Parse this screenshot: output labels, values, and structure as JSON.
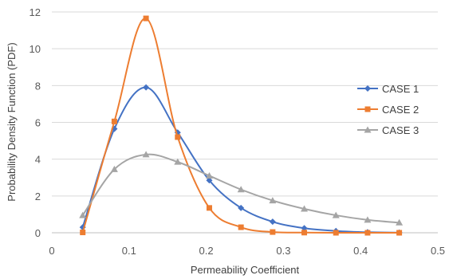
{
  "chart_data": {
    "type": "scatter",
    "title": "",
    "xlabel": "Permeability Coefficient",
    "ylabel": "Probability  Density Function (PDF)",
    "xlim": [
      0,
      0.5
    ],
    "ylim": [
      0,
      12
    ],
    "xticks": [
      "0",
      "0.1",
      "0.2",
      "0.3",
      "0.4",
      "0.5"
    ],
    "yticks": [
      "0",
      "2",
      "4",
      "6",
      "8",
      "10",
      "12"
    ],
    "grid": "horizontal",
    "legend_position": "right",
    "x": [
      0.04,
      0.081,
      0.122,
      0.163,
      0.204,
      0.245,
      0.286,
      0.327,
      0.368,
      0.409,
      0.45
    ],
    "series": [
      {
        "name": "CASE 1",
        "color": "#4472C4",
        "marker": "diamond",
        "values": [
          0.3,
          5.65,
          7.9,
          5.45,
          2.85,
          1.35,
          0.6,
          0.25,
          0.1,
          0.03,
          0.01
        ]
      },
      {
        "name": "CASE 2",
        "color": "#ED7D31",
        "marker": "square",
        "values": [
          0.02,
          6.05,
          11.65,
          5.2,
          1.35,
          0.3,
          0.04,
          0.01,
          0.0,
          0.0,
          0.0
        ]
      },
      {
        "name": "CASE 3",
        "color": "#A5A5A5",
        "marker": "triangle",
        "values": [
          0.95,
          3.45,
          4.25,
          3.85,
          3.1,
          2.35,
          1.75,
          1.3,
          0.95,
          0.7,
          0.55
        ]
      }
    ]
  }
}
